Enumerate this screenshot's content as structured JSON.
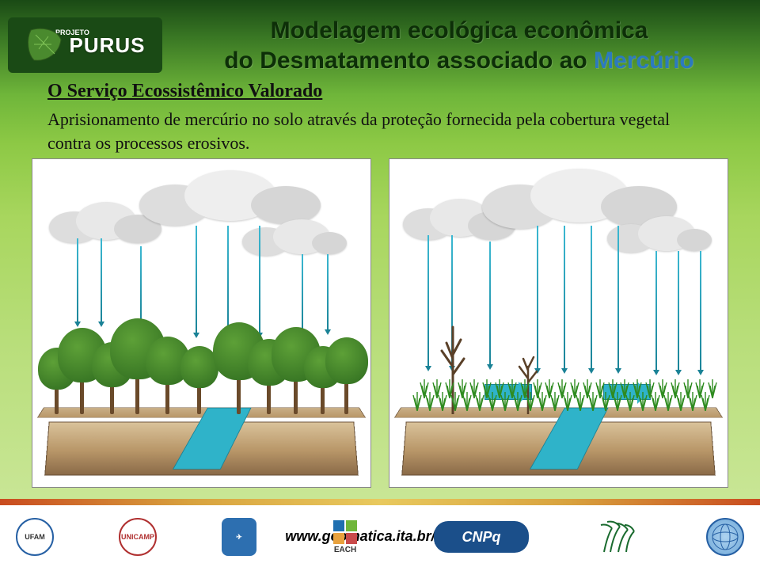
{
  "header": {
    "project_small": "PROJETO",
    "project_name": "PURUS",
    "title_line1": "Modelagem ecológica econômica",
    "title_line2_a": "do Desmatamento associado ao ",
    "title_line2_b": "Mercúrio"
  },
  "section": {
    "heading": "O Serviço Ecossistêmico Valorado",
    "body": "Aprisionamento de mercúrio no solo através da proteção fornecida pela cobertura vegetal contra os processos erosivos."
  },
  "diagrams": {
    "type": "infographic",
    "panels": [
      {
        "id": "forested",
        "background_color": "#ffffff",
        "soil_colors": [
          "#d9c29a",
          "#b89668",
          "#8a6a48"
        ],
        "river_color": "#2fb3c9",
        "cloud_color": "#e6e6e6",
        "rain_color": "#2aa7c2",
        "tree_crown_color": "#3a7a26",
        "tree_trunk_color": "#6a4a2a",
        "n_trees": 11,
        "n_rain": 8,
        "clouds": 3
      },
      {
        "id": "deforested",
        "background_color": "#ffffff",
        "soil_colors": [
          "#d9c29a",
          "#b89668",
          "#8a6a48"
        ],
        "river_color": "#2fb3c9",
        "cloud_color": "#e6e6e6",
        "rain_color": "#2aa7c2",
        "grass_color": "#2e8b1f",
        "runoff_arrow_color": "#2fb3c9",
        "n_grass_tufts": 24,
        "n_rain": 10,
        "clouds": 3,
        "bare_trees": 2
      }
    ]
  },
  "footer": {
    "url": "www.geomatica.ita.br/purus",
    "logos": [
      "UFAM",
      "UNICAMP",
      "FAB",
      "EACH",
      "CNPq",
      "INPA",
      "WB"
    ],
    "cnpq_label": "CNPq",
    "each_label": "EACH"
  },
  "colors": {
    "bg_dark_green": "#1a4a15",
    "bg_mid_green": "#6fb63a",
    "bg_light_green": "#c9e696",
    "title_dark": "#0d2f08",
    "mercury_blue": "#2c7abf",
    "footer_stripe": [
      "#c94b1f",
      "#e8c95e"
    ]
  }
}
